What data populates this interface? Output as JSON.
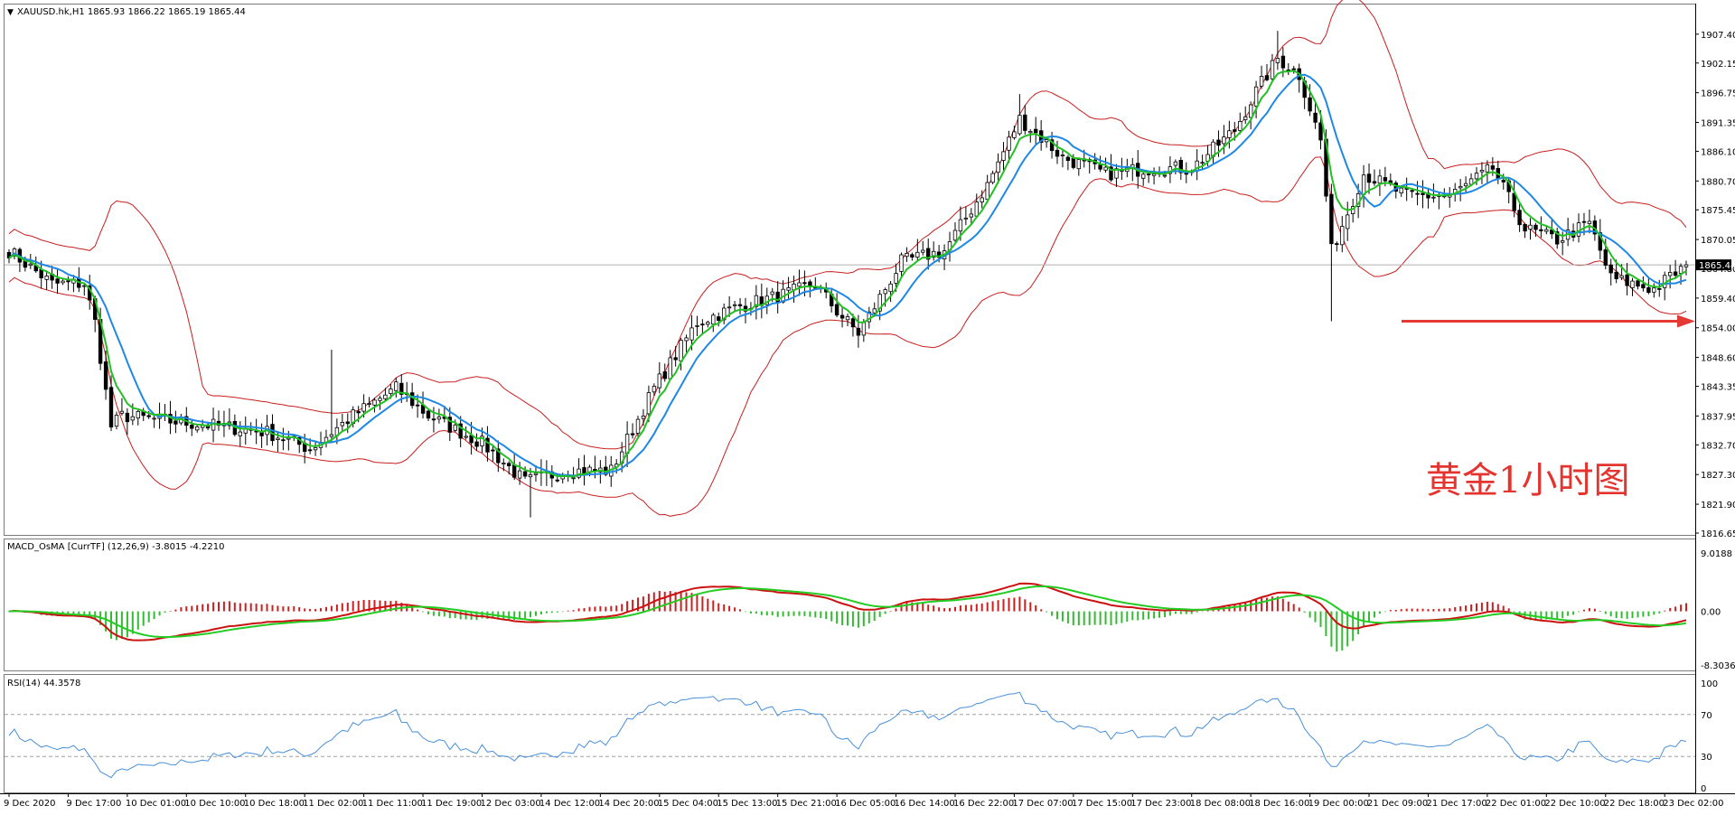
{
  "window": {
    "symbol_caption": "XAUUSD.hk,H1  1865.93 1866.22 1865.19 1865.44",
    "annotation": "黄金1小时图",
    "current_price_label": "1865.44"
  },
  "colors": {
    "bull_candle": "#ffffff",
    "bear_candle": "#000000",
    "bollinger": "#c81e1e",
    "ma_fast": "#22c022",
    "ma_slow": "#1e88e5",
    "macd_pos": "#cc1f1f",
    "macd_neg": "#33bb33",
    "macd_line": "#cc1111",
    "signal_line": "#22cc22",
    "rsi_line": "#4a90d9",
    "arrow": "#e53935"
  },
  "chart_data": [
    {
      "type": "candlestick",
      "title": "XAUUSD.hk,H1  1865.93 1866.22 1865.19 1865.44",
      "ylim": [
        1816.65,
        1910.0
      ],
      "yticks": [
        "1907.40",
        "1902.15",
        "1896.75",
        "1891.35",
        "1886.10",
        "1880.70",
        "1875.45",
        "1870.05",
        "1864.80",
        "1859.40",
        "1854.00",
        "1848.60",
        "1843.35",
        "1837.95",
        "1832.70",
        "1827.30",
        "1821.90",
        "1816.65"
      ],
      "overlays": [
        "Bollinger Bands",
        "Moving Average (fast)",
        "Moving Average (slow)"
      ],
      "current_price": 1865.44,
      "anchors": [
        [
          0,
          1868
        ],
        [
          8,
          1862
        ],
        [
          14,
          1862
        ],
        [
          16,
          1855
        ],
        [
          19,
          1836
        ],
        [
          21,
          1838
        ],
        [
          30,
          1837
        ],
        [
          40,
          1836
        ],
        [
          48,
          1835
        ],
        [
          56,
          1832
        ],
        [
          64,
          1838
        ],
        [
          72,
          1843
        ],
        [
          78,
          1838
        ],
        [
          88,
          1833
        ],
        [
          96,
          1826
        ],
        [
          104,
          1828
        ],
        [
          112,
          1828
        ],
        [
          120,
          1843
        ],
        [
          128,
          1855
        ],
        [
          136,
          1858
        ],
        [
          144,
          1860
        ],
        [
          150,
          1862
        ],
        [
          154,
          1857
        ],
        [
          158,
          1853
        ],
        [
          166,
          1866
        ],
        [
          174,
          1868
        ],
        [
          182,
          1880
        ],
        [
          188,
          1892
        ],
        [
          196,
          1885
        ],
        [
          204,
          1882
        ],
        [
          212,
          1883
        ],
        [
          220,
          1883
        ],
        [
          228,
          1890
        ],
        [
          232,
          1897
        ],
        [
          236,
          1903
        ],
        [
          240,
          1900
        ],
        [
          244,
          1888
        ],
        [
          246,
          1868
        ],
        [
          252,
          1882
        ],
        [
          260,
          1878
        ],
        [
          268,
          1878
        ],
        [
          276,
          1883
        ],
        [
          282,
          1872
        ],
        [
          288,
          1870
        ],
        [
          294,
          1873
        ],
        [
          298,
          1863
        ],
        [
          302,
          1862
        ],
        [
          306,
          1861
        ],
        [
          312,
          1865.44
        ]
      ],
      "annotation_arrow_price": 1855.2
    },
    {
      "type": "histogram",
      "title": "MACD_OsMA [CurrTF] (12,26,9) -3.8015 -4.2210",
      "ylim": [
        -8.3036,
        9.0188
      ],
      "yticks": [
        "9.0188",
        "0.00",
        "-8.3036"
      ],
      "params": [
        12,
        26,
        9
      ],
      "values_label": [
        "-3.8015",
        "-4.2210"
      ]
    },
    {
      "type": "line",
      "title": "RSI(14) 44.3578",
      "ylim": [
        0,
        100
      ],
      "yticks": [
        "100",
        "70",
        "30",
        "0"
      ],
      "levels": [
        30,
        70
      ],
      "period": 14,
      "last_value": 44.3578
    }
  ],
  "time_labels": [
    "9 Dec 2020",
    "9 Dec 17:00",
    "10 Dec 01:00",
    "10 Dec 10:00",
    "10 Dec 18:00",
    "11 Dec 02:00",
    "11 Dec 11:00",
    "11 Dec 19:00",
    "12 Dec 03:00",
    "14 Dec 12:00",
    "14 Dec 20:00",
    "15 Dec 04:00",
    "15 Dec 13:00",
    "15 Dec 21:00",
    "16 Dec 05:00",
    "16 Dec 14:00",
    "16 Dec 22:00",
    "17 Dec 07:00",
    "17 Dec 15:00",
    "17 Dec 23:00",
    "18 Dec 08:00",
    "18 Dec 16:00",
    "19 Dec 00:00",
    "21 Dec 09:00",
    "21 Dec 17:00",
    "22 Dec 01:00",
    "22 Dec 10:00",
    "22 Dec 18:00",
    "23 Dec 02:00"
  ]
}
